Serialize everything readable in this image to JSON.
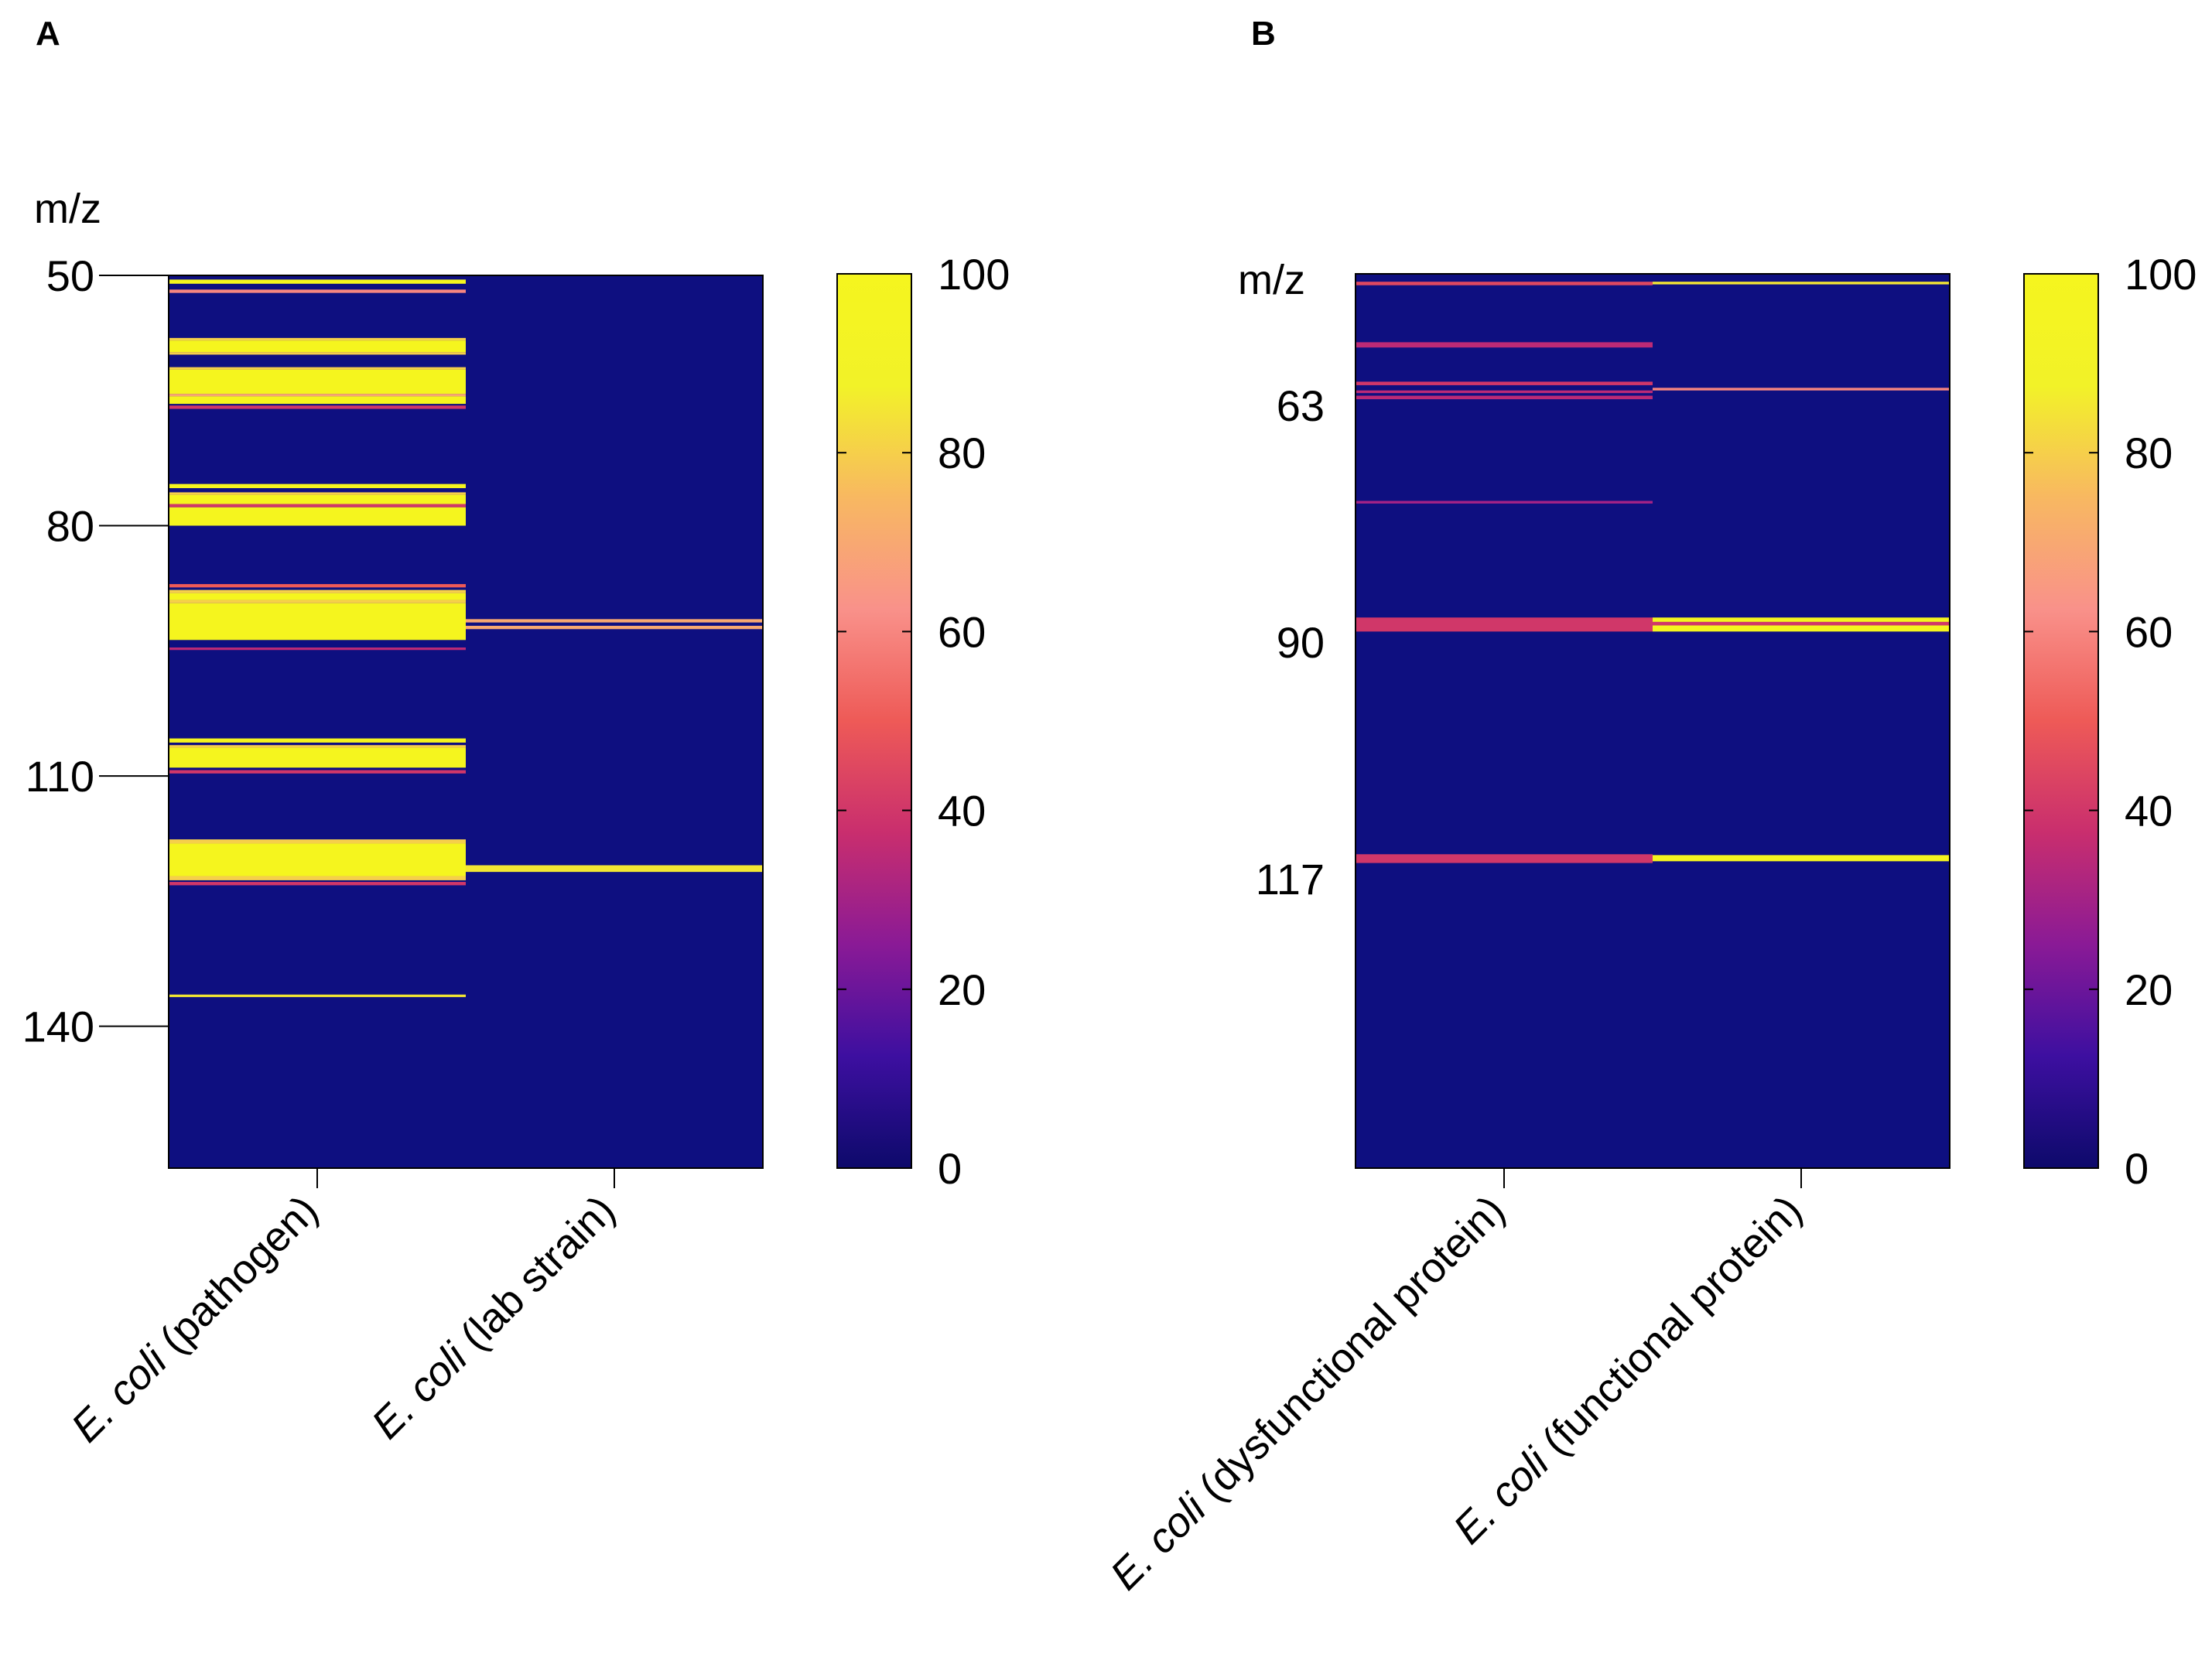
{
  "colors": {
    "background_heatmap": "#0e0f80",
    "colormap": [
      "#0d0a6b",
      "#3d0fa0",
      "#8a1a96",
      "#c92e6e",
      "#ee5a57",
      "#f9918a",
      "#f8b861",
      "#f2f228",
      "#f5f51e"
    ]
  },
  "chart_data": [
    {
      "type": "heatmap",
      "panel_label": "A",
      "ylabel": "m/z",
      "ylim": [
        50,
        157
      ],
      "yticks": [
        50,
        80,
        110,
        140
      ],
      "columns": [
        {
          "label_italic": "E. coli",
          "label_rest": " (pathogen)"
        },
        {
          "label_italic": "E. coli",
          "label_rest": " (lab strain)"
        }
      ],
      "colorbar": {
        "min": 0,
        "max": 100,
        "ticks": [
          0,
          20,
          40,
          60,
          80,
          100
        ]
      },
      "bands": [
        {
          "col": 0,
          "start": 50.5,
          "end": 51.0,
          "value": 100
        },
        {
          "col": 0,
          "start": 51.7,
          "end": 52.1,
          "value": 60
        },
        {
          "col": 0,
          "start": 57.5,
          "end": 57.8,
          "value": 80
        },
        {
          "col": 0,
          "start": 57.8,
          "end": 59.2,
          "value": 100
        },
        {
          "col": 0,
          "start": 59.2,
          "end": 59.5,
          "value": 80
        },
        {
          "col": 0,
          "start": 61.0,
          "end": 61.3,
          "value": 80
        },
        {
          "col": 0,
          "start": 61.3,
          "end": 64.2,
          "value": 100
        },
        {
          "col": 0,
          "start": 64.2,
          "end": 64.5,
          "value": 70
        },
        {
          "col": 0,
          "start": 64.5,
          "end": 65.4,
          "value": 100
        },
        {
          "col": 0,
          "start": 65.6,
          "end": 66.0,
          "value": 40
        },
        {
          "col": 0,
          "start": 75.0,
          "end": 75.5,
          "value": 100
        },
        {
          "col": 0,
          "start": 76.0,
          "end": 76.3,
          "value": 80
        },
        {
          "col": 0,
          "start": 76.3,
          "end": 77.4,
          "value": 100
        },
        {
          "col": 0,
          "start": 77.4,
          "end": 77.8,
          "value": 40
        },
        {
          "col": 0,
          "start": 77.8,
          "end": 80.0,
          "value": 100
        },
        {
          "col": 0,
          "start": 87.0,
          "end": 87.4,
          "value": 50
        },
        {
          "col": 0,
          "start": 87.7,
          "end": 88.1,
          "value": 80
        },
        {
          "col": 0,
          "start": 88.1,
          "end": 88.9,
          "value": 100
        },
        {
          "col": 0,
          "start": 88.9,
          "end": 89.3,
          "value": 80
        },
        {
          "col": 0,
          "start": 89.3,
          "end": 93.7,
          "value": 100
        },
        {
          "col": 0,
          "start": 94.6,
          "end": 94.9,
          "value": 35
        },
        {
          "col": 0,
          "start": 105.5,
          "end": 106.0,
          "value": 100
        },
        {
          "col": 0,
          "start": 106.3,
          "end": 106.6,
          "value": 80
        },
        {
          "col": 0,
          "start": 106.6,
          "end": 109.0,
          "value": 100
        },
        {
          "col": 0,
          "start": 109.3,
          "end": 109.7,
          "value": 40
        },
        {
          "col": 0,
          "start": 117.6,
          "end": 118.1,
          "value": 80
        },
        {
          "col": 0,
          "start": 118.1,
          "end": 122.0,
          "value": 100
        },
        {
          "col": 0,
          "start": 122.0,
          "end": 122.5,
          "value": 80
        },
        {
          "col": 0,
          "start": 122.7,
          "end": 123.1,
          "value": 40
        },
        {
          "col": 0,
          "start": 136.2,
          "end": 136.5,
          "value": 85
        },
        {
          "col": 1,
          "start": 91.2,
          "end": 91.6,
          "value": 70
        },
        {
          "col": 1,
          "start": 92.0,
          "end": 92.4,
          "value": 70
        },
        {
          "col": 1,
          "start": 120.7,
          "end": 121.5,
          "value": 85
        }
      ]
    },
    {
      "type": "heatmap",
      "panel_label": "B",
      "ylabel": "m/z",
      "ylim": [
        48,
        150
      ],
      "yticks": [
        63,
        90,
        117
      ],
      "columns": [
        {
          "label_italic": "E. coli",
          "label_rest": " (dysfunctional protein)"
        },
        {
          "label_italic": "E. coli",
          "label_rest": " (functional protein)"
        }
      ],
      "colorbar": {
        "min": 0,
        "max": 100,
        "ticks": [
          0,
          20,
          40,
          60,
          80,
          100
        ]
      },
      "bands": [
        {
          "col": 0,
          "start": 48.9,
          "end": 49.3,
          "value": 45
        },
        {
          "col": 0,
          "start": 55.8,
          "end": 56.4,
          "value": 35
        },
        {
          "col": 0,
          "start": 60.3,
          "end": 60.7,
          "value": 40
        },
        {
          "col": 0,
          "start": 61.3,
          "end": 61.6,
          "value": 35
        },
        {
          "col": 0,
          "start": 61.9,
          "end": 62.3,
          "value": 35
        },
        {
          "col": 0,
          "start": 73.9,
          "end": 74.2,
          "value": 30
        },
        {
          "col": 0,
          "start": 87.2,
          "end": 88.8,
          "value": 40
        },
        {
          "col": 0,
          "start": 114.2,
          "end": 115.2,
          "value": 40
        },
        {
          "col": 1,
          "start": 48.9,
          "end": 49.2,
          "value": 85
        },
        {
          "col": 1,
          "start": 61.0,
          "end": 61.3,
          "value": 60
        },
        {
          "col": 1,
          "start": 87.2,
          "end": 87.7,
          "value": 100
        },
        {
          "col": 1,
          "start": 87.7,
          "end": 88.1,
          "value": 40
        },
        {
          "col": 1,
          "start": 88.1,
          "end": 88.8,
          "value": 100
        },
        {
          "col": 1,
          "start": 114.3,
          "end": 115.0,
          "value": 100
        }
      ]
    }
  ]
}
